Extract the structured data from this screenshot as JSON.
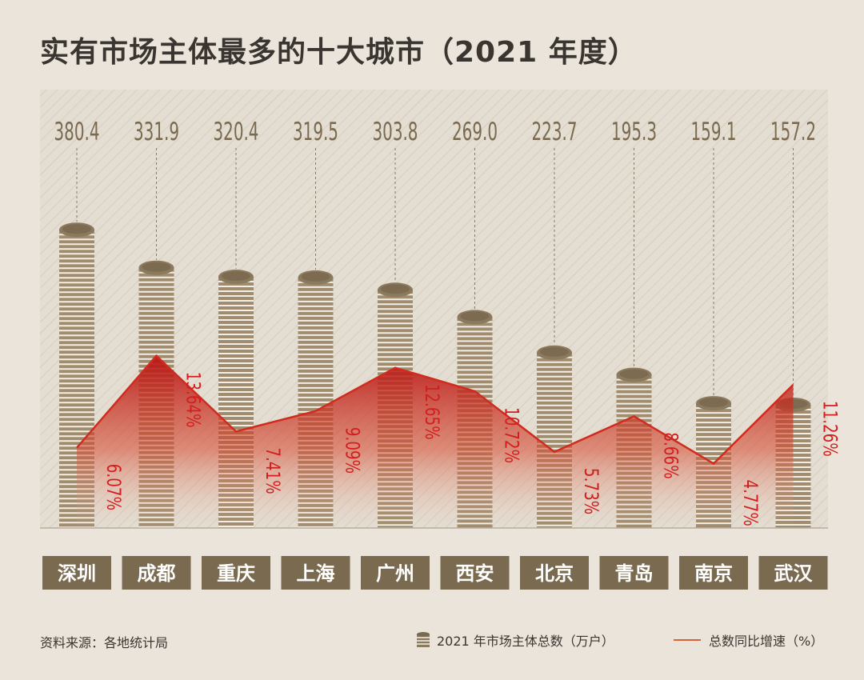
{
  "title": "实有市场主体最多的十大城市（2021 年度）",
  "source": "资料来源：各地统计局",
  "legend": {
    "coins_label": "2021 年市场主体总数（万户）",
    "line_label": "总数同比增速（%）"
  },
  "colors": {
    "background": "#eae4da",
    "hatch_panel": "#e2dbcf",
    "coin_top": "#8c7a5e",
    "coin_side": "#a08d6f",
    "coin_stripe": "#f4efe6",
    "label_box": "#7a6a50",
    "value_text": "#7a6a50",
    "growth_text": "#d21e1e",
    "growth_line": "#d12b1e"
  },
  "chart_data": {
    "type": "bar",
    "title": "实有市场主体最多的十大城市（2021 年度）",
    "categories": [
      "深圳",
      "成都",
      "重庆",
      "上海",
      "广州",
      "西安",
      "北京",
      "青岛",
      "南京",
      "武汉"
    ],
    "series": [
      {
        "name": "2021 年市场主体总数（万户）",
        "type": "bar",
        "values": [
          380.4,
          331.9,
          320.4,
          319.5,
          303.8,
          269.0,
          223.7,
          195.3,
          159.1,
          157.2
        ],
        "labels": [
          "380.4",
          "331.9",
          "320.4",
          "319.5",
          "303.8",
          "269.0",
          "223.7",
          "195.3",
          "159.1",
          "157.2"
        ]
      },
      {
        "name": "总数同比增速（%）",
        "type": "area",
        "values": [
          6.07,
          13.64,
          7.41,
          9.09,
          12.65,
          10.72,
          5.73,
          8.66,
          4.77,
          11.26
        ],
        "labels": [
          "6.07%",
          "13.64%",
          "7.41%",
          "9.09%",
          "12.65%",
          "10.72%",
          "5.73%",
          "8.66%",
          "4.77%",
          "11.26%"
        ]
      }
    ],
    "ylim_primary": [
      0,
      400
    ],
    "ylim_secondary": [
      0,
      15
    ]
  }
}
